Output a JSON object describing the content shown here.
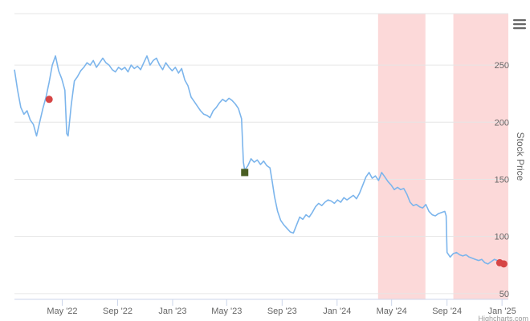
{
  "chart_data": {
    "type": "line",
    "title": "",
    "xlabel": "",
    "ylabel": "Stock Price",
    "xlim": [
      "2022-01-15",
      "2025-01-15"
    ],
    "ylim": [
      45,
      295
    ],
    "y_ticks": [
      50,
      100,
      150,
      200,
      250
    ],
    "x_ticks": [
      {
        "date": "2022-05-01",
        "label": "May '22"
      },
      {
        "date": "2022-09-01",
        "label": "Sep '22"
      },
      {
        "date": "2023-01-01",
        "label": "Jan '23"
      },
      {
        "date": "2023-05-01",
        "label": "May '23"
      },
      {
        "date": "2023-09-01",
        "label": "Sep '23"
      },
      {
        "date": "2024-01-01",
        "label": "Jan '24"
      },
      {
        "date": "2024-05-01",
        "label": "May '24"
      },
      {
        "date": "2024-09-01",
        "label": "Sep '24"
      },
      {
        "date": "2025-01-01",
        "label": "Jan '25"
      }
    ],
    "grid": true,
    "y_axis_side": "right",
    "line_color": "#7cb5ec",
    "series": [
      {
        "points": [
          [
            "2022-01-15",
            246
          ],
          [
            "2022-01-22",
            228
          ],
          [
            "2022-01-29",
            213
          ],
          [
            "2022-02-05",
            207
          ],
          [
            "2022-02-12",
            210
          ],
          [
            "2022-02-19",
            202
          ],
          [
            "2022-02-26",
            198
          ],
          [
            "2022-03-05",
            188
          ],
          [
            "2022-03-12",
            200
          ],
          [
            "2022-03-19",
            212
          ],
          [
            "2022-03-26",
            222
          ],
          [
            "2022-04-02",
            235
          ],
          [
            "2022-04-09",
            250
          ],
          [
            "2022-04-16",
            258
          ],
          [
            "2022-04-23",
            245
          ],
          [
            "2022-04-30",
            238
          ],
          [
            "2022-05-07",
            228
          ],
          [
            "2022-05-11",
            190
          ],
          [
            "2022-05-14",
            188
          ],
          [
            "2022-05-21",
            215
          ],
          [
            "2022-05-28",
            236
          ],
          [
            "2022-06-04",
            240
          ],
          [
            "2022-06-11",
            245
          ],
          [
            "2022-06-18",
            248
          ],
          [
            "2022-06-25",
            252
          ],
          [
            "2022-07-02",
            250
          ],
          [
            "2022-07-09",
            254
          ],
          [
            "2022-07-16",
            248
          ],
          [
            "2022-07-23",
            252
          ],
          [
            "2022-07-30",
            256
          ],
          [
            "2022-08-06",
            252
          ],
          [
            "2022-08-13",
            250
          ],
          [
            "2022-08-20",
            246
          ],
          [
            "2022-08-27",
            244
          ],
          [
            "2022-09-03",
            248
          ],
          [
            "2022-09-10",
            246
          ],
          [
            "2022-09-17",
            248
          ],
          [
            "2022-09-24",
            244
          ],
          [
            "2022-10-01",
            250
          ],
          [
            "2022-10-08",
            247
          ],
          [
            "2022-10-15",
            249
          ],
          [
            "2022-10-22",
            246
          ],
          [
            "2022-10-29",
            252
          ],
          [
            "2022-11-05",
            258
          ],
          [
            "2022-11-12",
            250
          ],
          [
            "2022-11-19",
            254
          ],
          [
            "2022-11-26",
            256
          ],
          [
            "2022-12-03",
            250
          ],
          [
            "2022-12-10",
            246
          ],
          [
            "2022-12-17",
            252
          ],
          [
            "2022-12-24",
            248
          ],
          [
            "2022-12-31",
            245
          ],
          [
            "2023-01-07",
            248
          ],
          [
            "2023-01-14",
            243
          ],
          [
            "2023-01-21",
            247
          ],
          [
            "2023-01-28",
            237
          ],
          [
            "2023-02-04",
            232
          ],
          [
            "2023-02-11",
            222
          ],
          [
            "2023-02-18",
            218
          ],
          [
            "2023-02-25",
            214
          ],
          [
            "2023-03-04",
            210
          ],
          [
            "2023-03-11",
            207
          ],
          [
            "2023-03-18",
            206
          ],
          [
            "2023-03-25",
            204
          ],
          [
            "2023-04-01",
            210
          ],
          [
            "2023-04-08",
            213
          ],
          [
            "2023-04-15",
            217
          ],
          [
            "2023-04-22",
            220
          ],
          [
            "2023-04-29",
            218
          ],
          [
            "2023-05-06",
            221
          ],
          [
            "2023-05-13",
            219
          ],
          [
            "2023-05-20",
            216
          ],
          [
            "2023-05-27",
            212
          ],
          [
            "2023-06-03",
            203
          ],
          [
            "2023-06-07",
            165
          ],
          [
            "2023-06-10",
            158
          ],
          [
            "2023-06-17",
            162
          ],
          [
            "2023-06-24",
            168
          ],
          [
            "2023-07-01",
            165
          ],
          [
            "2023-07-08",
            167
          ],
          [
            "2023-07-15",
            163
          ],
          [
            "2023-07-22",
            166
          ],
          [
            "2023-07-29",
            162
          ],
          [
            "2023-08-05",
            160
          ],
          [
            "2023-08-10",
            148
          ],
          [
            "2023-08-15",
            135
          ],
          [
            "2023-08-22",
            122
          ],
          [
            "2023-08-29",
            114
          ],
          [
            "2023-09-05",
            110
          ],
          [
            "2023-09-12",
            107
          ],
          [
            "2023-09-19",
            104
          ],
          [
            "2023-09-26",
            103
          ],
          [
            "2023-10-03",
            110
          ],
          [
            "2023-10-10",
            117
          ],
          [
            "2023-10-17",
            115
          ],
          [
            "2023-10-24",
            119
          ],
          [
            "2023-10-31",
            117
          ],
          [
            "2023-11-07",
            121
          ],
          [
            "2023-11-14",
            126
          ],
          [
            "2023-11-21",
            129
          ],
          [
            "2023-11-28",
            127
          ],
          [
            "2023-12-05",
            130
          ],
          [
            "2023-12-12",
            132
          ],
          [
            "2023-12-19",
            131
          ],
          [
            "2023-12-26",
            129
          ],
          [
            "2024-01-02",
            132
          ],
          [
            "2024-01-09",
            130
          ],
          [
            "2024-01-16",
            134
          ],
          [
            "2024-01-23",
            132
          ],
          [
            "2024-01-30",
            134
          ],
          [
            "2024-02-06",
            136
          ],
          [
            "2024-02-13",
            133
          ],
          [
            "2024-02-20",
            138
          ],
          [
            "2024-02-27",
            145
          ],
          [
            "2024-03-05",
            152
          ],
          [
            "2024-03-12",
            156
          ],
          [
            "2024-03-19",
            151
          ],
          [
            "2024-03-26",
            153
          ],
          [
            "2024-04-02",
            149
          ],
          [
            "2024-04-09",
            156
          ],
          [
            "2024-04-16",
            152
          ],
          [
            "2024-04-23",
            148
          ],
          [
            "2024-04-30",
            145
          ],
          [
            "2024-05-07",
            141
          ],
          [
            "2024-05-14",
            143
          ],
          [
            "2024-05-21",
            141
          ],
          [
            "2024-05-28",
            142
          ],
          [
            "2024-06-04",
            137
          ],
          [
            "2024-06-11",
            130
          ],
          [
            "2024-06-18",
            127
          ],
          [
            "2024-06-25",
            128
          ],
          [
            "2024-07-02",
            126
          ],
          [
            "2024-07-09",
            125
          ],
          [
            "2024-07-16",
            128
          ],
          [
            "2024-07-23",
            122
          ],
          [
            "2024-07-30",
            119
          ],
          [
            "2024-08-06",
            118
          ],
          [
            "2024-08-13",
            120
          ],
          [
            "2024-08-20",
            121
          ],
          [
            "2024-08-27",
            122
          ],
          [
            "2024-08-30",
            118
          ],
          [
            "2024-09-01",
            86
          ],
          [
            "2024-09-08",
            82
          ],
          [
            "2024-09-15",
            85
          ],
          [
            "2024-09-22",
            86
          ],
          [
            "2024-09-29",
            84
          ],
          [
            "2024-10-06",
            83
          ],
          [
            "2024-10-13",
            84
          ],
          [
            "2024-10-20",
            82
          ],
          [
            "2024-10-27",
            81
          ],
          [
            "2024-11-03",
            80
          ],
          [
            "2024-11-10",
            79
          ],
          [
            "2024-11-17",
            80
          ],
          [
            "2024-11-24",
            77
          ],
          [
            "2024-12-01",
            76
          ],
          [
            "2024-12-08",
            78
          ],
          [
            "2024-12-15",
            80
          ],
          [
            "2024-12-22",
            79
          ]
        ]
      }
    ],
    "shaded_ranges": [
      {
        "from": "2024-04-01",
        "to": "2024-07-15",
        "color": "#fcd9d9"
      },
      {
        "from": "2024-09-15",
        "to": "2025-01-15",
        "color": "#fcd9d9"
      }
    ],
    "markers": [
      {
        "date": "2022-04-02",
        "value": 220,
        "shape": "circle",
        "color": "#d64545"
      },
      {
        "date": "2023-06-10",
        "value": 156,
        "shape": "square",
        "color": "#4a5e23"
      },
      {
        "date": "2024-12-27",
        "value": 77,
        "shape": "circle",
        "color": "#d64545"
      },
      {
        "date": "2025-01-05",
        "value": 76,
        "shape": "circle",
        "color": "#d64545"
      }
    ]
  },
  "credits": "Highcharts.com",
  "menu_icon": "hamburger-menu-icon"
}
